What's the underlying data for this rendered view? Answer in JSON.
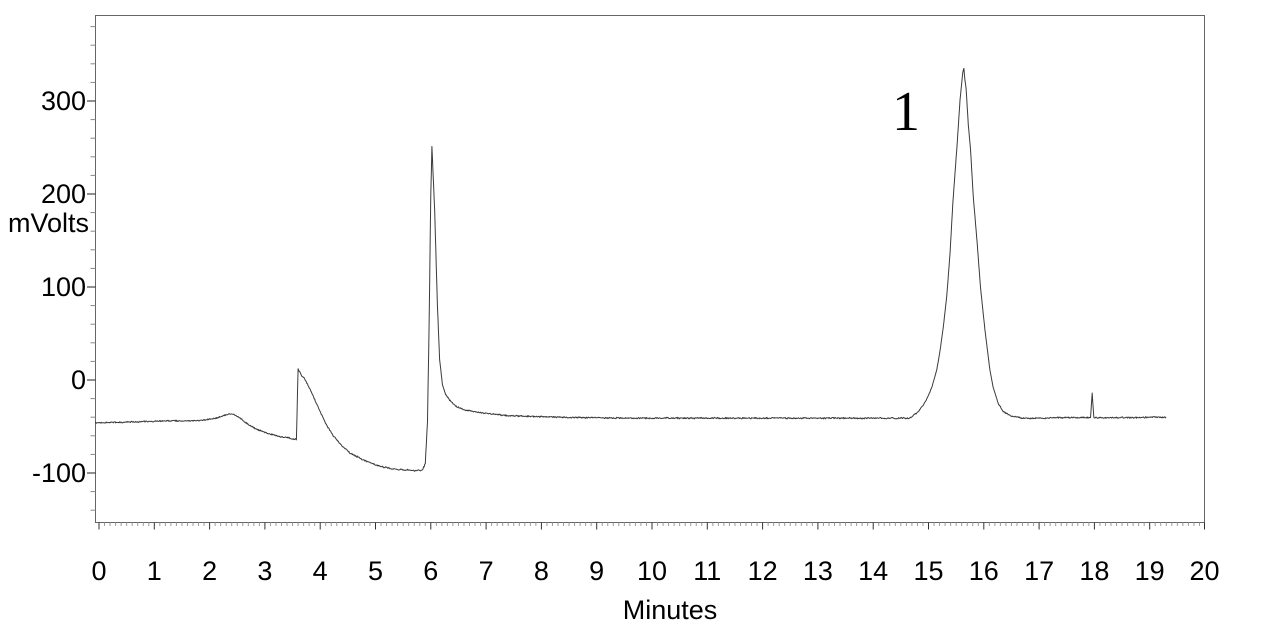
{
  "chart_data": {
    "type": "line",
    "title": "",
    "xlabel": "Minutes",
    "ylabel": "mVolts",
    "xlim": [
      0,
      20
    ],
    "ylim": [
      -153,
      392
    ],
    "x_ticks": [
      0,
      1,
      2,
      3,
      4,
      5,
      6,
      7,
      8,
      9,
      10,
      11,
      12,
      13,
      14,
      15,
      16,
      17,
      18,
      19,
      20
    ],
    "y_ticks": [
      -100,
      0,
      100,
      200,
      300
    ],
    "x_minor_step": 0.1,
    "y_minor_step": 20,
    "grid": false,
    "legend": "none",
    "line_color": "#3a3a3a",
    "frame_color": "#666666",
    "noise_mv": 1.2,
    "peaks": [
      {
        "label": "",
        "t": 3.6,
        "mv": 12
      },
      {
        "label": "",
        "t": 6.0,
        "mv": 251
      },
      {
        "label": "1",
        "t": 15.6,
        "mv": 335
      },
      {
        "label": "",
        "t": 18.0,
        "mv": -14
      }
    ],
    "trace_anchors": [
      [
        -0.07,
        -46
      ],
      [
        0.3,
        -45.5
      ],
      [
        0.6,
        -45
      ],
      [
        0.9,
        -44.5
      ],
      [
        1.2,
        -44
      ],
      [
        1.5,
        -44
      ],
      [
        1.8,
        -43.5
      ],
      [
        2.05,
        -42
      ],
      [
        2.2,
        -39.5
      ],
      [
        2.32,
        -37
      ],
      [
        2.42,
        -36.5
      ],
      [
        2.55,
        -41
      ],
      [
        2.7,
        -48
      ],
      [
        2.85,
        -53
      ],
      [
        3.05,
        -57.5
      ],
      [
        3.25,
        -60.5
      ],
      [
        3.45,
        -62.5
      ],
      [
        3.57,
        -64
      ],
      [
        3.6,
        12
      ],
      [
        3.66,
        5
      ],
      [
        3.72,
        1
      ],
      [
        3.8,
        -8
      ],
      [
        3.9,
        -21
      ],
      [
        4.0,
        -34
      ],
      [
        4.12,
        -49
      ],
      [
        4.25,
        -61
      ],
      [
        4.4,
        -71
      ],
      [
        4.55,
        -79
      ],
      [
        4.72,
        -84
      ],
      [
        4.9,
        -89
      ],
      [
        5.1,
        -93
      ],
      [
        5.35,
        -96
      ],
      [
        5.6,
        -97
      ],
      [
        5.84,
        -97.5
      ],
      [
        5.9,
        -90
      ],
      [
        5.94,
        -45
      ],
      [
        5.97,
        60
      ],
      [
        6.0,
        200
      ],
      [
        6.02,
        251
      ],
      [
        6.07,
        182
      ],
      [
        6.12,
        80
      ],
      [
        6.16,
        22
      ],
      [
        6.21,
        -5
      ],
      [
        6.27,
        -16
      ],
      [
        6.35,
        -22
      ],
      [
        6.45,
        -28
      ],
      [
        6.6,
        -32
      ],
      [
        6.85,
        -34.5
      ],
      [
        7.1,
        -36.5
      ],
      [
        7.4,
        -38.5
      ],
      [
        8.0,
        -39.5
      ],
      [
        8.6,
        -40.3
      ],
      [
        9.2,
        -40.8
      ],
      [
        10,
        -41
      ],
      [
        11,
        -41
      ],
      [
        12,
        -41
      ],
      [
        13,
        -41
      ],
      [
        14,
        -41
      ],
      [
        14.66,
        -41
      ],
      [
        14.8,
        -35
      ],
      [
        14.95,
        -23
      ],
      [
        15.06,
        -8
      ],
      [
        15.15,
        11
      ],
      [
        15.21,
        32
      ],
      [
        15.27,
        58
      ],
      [
        15.33,
        90
      ],
      [
        15.39,
        137
      ],
      [
        15.44,
        190
      ],
      [
        15.51,
        247
      ],
      [
        15.57,
        301
      ],
      [
        15.62,
        331
      ],
      [
        15.64,
        335
      ],
      [
        15.66,
        322
      ],
      [
        15.68,
        313
      ],
      [
        15.72,
        274
      ],
      [
        15.76,
        248
      ],
      [
        15.81,
        197
      ],
      [
        15.88,
        147
      ],
      [
        15.94,
        100
      ],
      [
        16.02,
        54
      ],
      [
        16.11,
        11
      ],
      [
        16.17,
        -8
      ],
      [
        16.26,
        -25
      ],
      [
        16.35,
        -34
      ],
      [
        16.5,
        -39
      ],
      [
        16.7,
        -41
      ],
      [
        17.0,
        -41
      ],
      [
        17.4,
        -40.5
      ],
      [
        17.93,
        -40.5
      ],
      [
        17.96,
        -14
      ],
      [
        17.99,
        -40.5
      ],
      [
        18.3,
        -40.5
      ],
      [
        18.7,
        -40.5
      ],
      [
        19.0,
        -40
      ],
      [
        19.3,
        -40
      ]
    ]
  }
}
